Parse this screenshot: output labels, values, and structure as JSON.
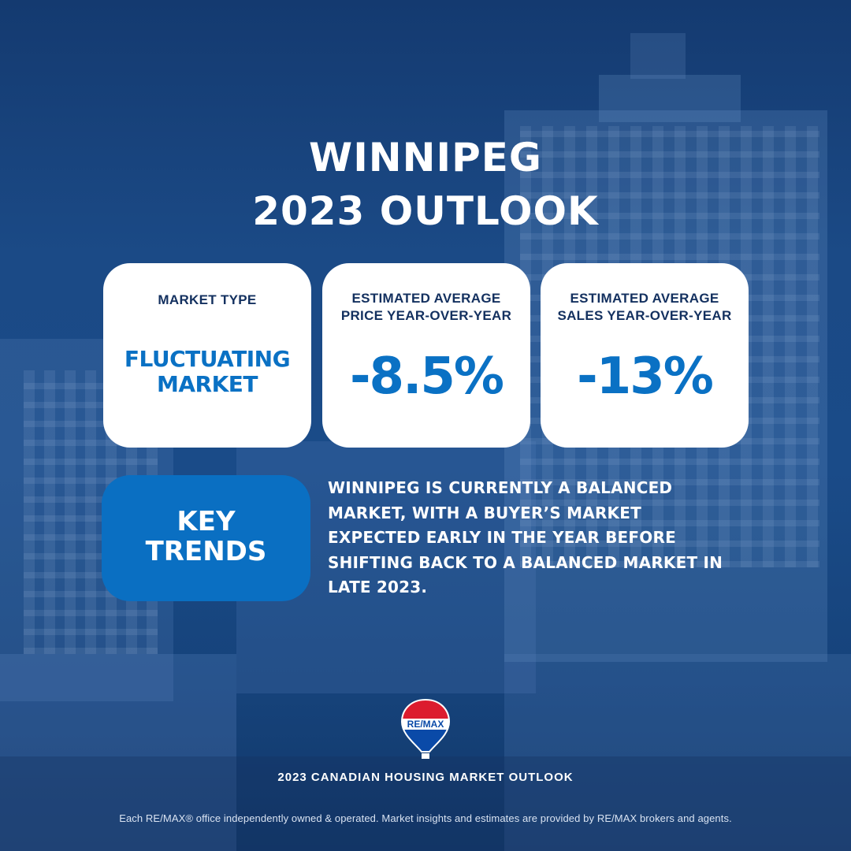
{
  "header": {
    "title_line1": "WINNIPEG",
    "title_line2": "2023 OUTLOOK"
  },
  "cards": [
    {
      "label": "MARKET TYPE",
      "value": "FLUCTUATING\nMARKET"
    },
    {
      "label": "ESTIMATED AVERAGE\nPRICE YEAR-OVER-YEAR",
      "value": "-8.5%"
    },
    {
      "label": "ESTIMATED AVERAGE\nSALES YEAR-OVER-YEAR",
      "value": "-13%"
    }
  ],
  "key_trends": {
    "label": "KEY\nTRENDS",
    "text": "WINNIPEG IS CURRENTLY A BALANCED MARKET, WITH A BUYER’S MARKET EXPECTED EARLY IN THE YEAR BEFORE SHIFTING BACK TO A BALANCED MARKET IN LATE 2023."
  },
  "logo": {
    "text": "RE/MAX",
    "icon": "hot-air-balloon-icon"
  },
  "footer": {
    "title": "2023 CANADIAN HOUSING MARKET OUTLOOK",
    "disclaimer": "Each RE/MAX® office independently owned & operated. Market insights and estimates are provided by RE/MAX brokers and agents."
  },
  "colors": {
    "background": "#1a4b88",
    "accent_blue": "#0a71c4",
    "label_navy": "#13305f",
    "balloon_red": "#dc1c2e",
    "white": "#ffffff"
  }
}
